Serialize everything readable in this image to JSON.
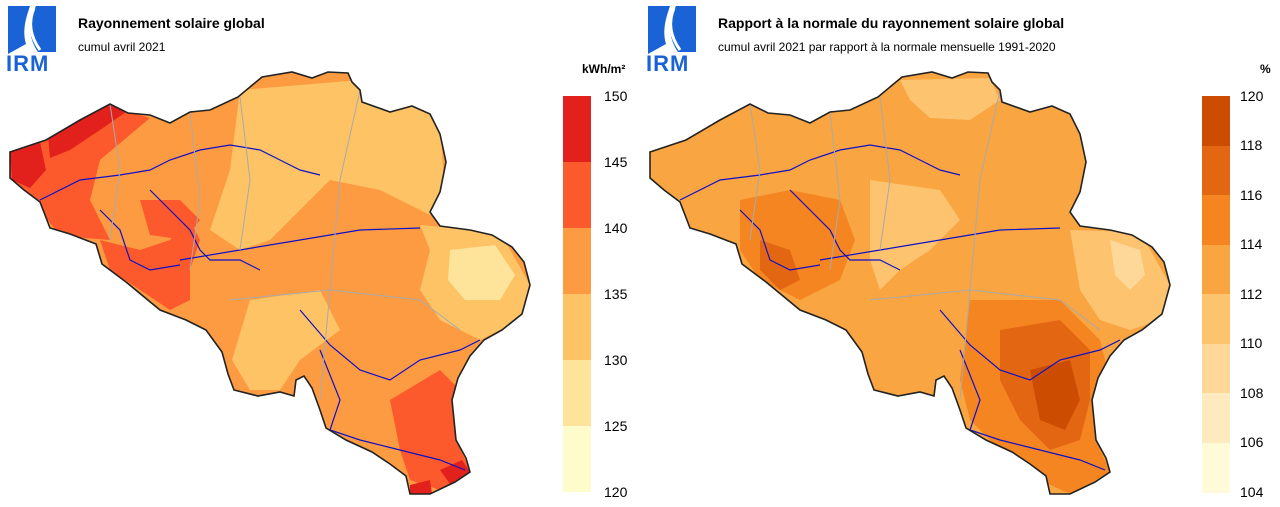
{
  "panels": [
    {
      "logo": "IRM",
      "title": "Rayonnement solaire global",
      "subtitle": "cumul avril 2021",
      "unit": "kWh/m²",
      "legend": {
        "labels": [
          "150",
          "145",
          "140",
          "135",
          "130",
          "125",
          "120"
        ],
        "colors": [
          "#e3211c",
          "#fc5a2d",
          "#fd9b42",
          "#fdc364",
          "#fee49a",
          "#fffccc"
        ]
      }
    },
    {
      "logo": "IRM",
      "title": "Rapport à la normale du rayonnement solaire global",
      "subtitle": "cumul avril 2021 par rapport à la normale mensuelle 1991-2020",
      "unit": "%",
      "legend": {
        "labels": [
          "120",
          "118",
          "116",
          "114",
          "112",
          "110",
          "108",
          "106",
          "104"
        ],
        "colors": [
          "#cc4c02",
          "#e36712",
          "#f48520",
          "#f9a542",
          "#fdc36e",
          "#fdd898",
          "#feeabf",
          "#fffad8"
        ]
      }
    }
  ]
}
